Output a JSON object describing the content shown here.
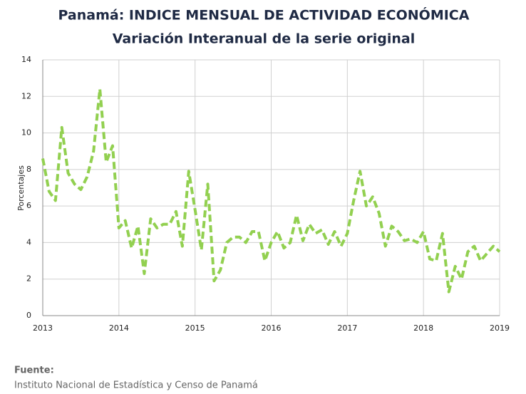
{
  "chart_data": {
    "type": "line",
    "title": "Panamá: INDICE MENSUAL DE ACTIVIDAD ECONÓMICA",
    "subtitle": "Variación Interanual de la serie original",
    "y_label": "Porcentajes",
    "x": [
      2013,
      2013.083,
      2013.167,
      2013.25,
      2013.333,
      2013.417,
      2013.5,
      2013.583,
      2013.667,
      2013.75,
      2013.833,
      2013.917,
      2014,
      2014.083,
      2014.167,
      2014.25,
      2014.333,
      2014.417,
      2014.5,
      2014.583,
      2014.667,
      2014.75,
      2014.833,
      2014.917,
      2015,
      2015.083,
      2015.167,
      2015.25,
      2015.333,
      2015.417,
      2015.5,
      2015.583,
      2015.667,
      2015.75,
      2015.833,
      2015.917,
      2016,
      2016.083,
      2016.167,
      2016.25,
      2016.333,
      2016.417,
      2016.5,
      2016.583,
      2016.667,
      2016.75,
      2016.833,
      2016.917,
      2017,
      2017.083,
      2017.167,
      2017.25,
      2017.333,
      2017.417,
      2017.5,
      2017.583,
      2017.667,
      2017.75,
      2017.833,
      2017.917,
      2018,
      2018.083,
      2018.167,
      2018.25,
      2018.333,
      2018.417,
      2018.5,
      2018.583,
      2018.667,
      2018.75,
      2018.833,
      2018.917,
      2019
    ],
    "series": [
      {
        "color": "#92d050",
        "values": [
          8.6,
          6.8,
          6.3,
          10.3,
          7.8,
          7.2,
          6.9,
          7.6,
          9.0,
          12.4,
          8.4,
          9.3,
          4.8,
          5.2,
          3.7,
          4.9,
          2.3,
          5.3,
          4.8,
          5.0,
          5.0,
          5.7,
          3.8,
          7.9,
          5.8,
          3.6,
          7.2,
          1.9,
          2.5,
          4.0,
          4.3,
          4.3,
          4.0,
          4.6,
          4.6,
          3.0,
          4.0,
          4.6,
          3.7,
          4.0,
          5.5,
          4.1,
          5.0,
          4.5,
          4.7,
          3.9,
          4.6,
          3.8,
          4.5,
          6.3,
          7.9,
          6.0,
          6.5,
          5.6,
          3.8,
          4.9,
          4.6,
          4.1,
          4.2,
          4.0,
          4.6,
          3.1,
          3.0,
          4.5,
          1.3,
          2.7,
          2.0,
          3.5,
          3.8,
          3.0,
          3.4,
          3.8,
          3.5
        ]
      }
    ],
    "xlim": [
      2013,
      2019
    ],
    "xticks": [
      2013,
      2014,
      2015,
      2016,
      2017,
      2018,
      2019
    ],
    "ylim": [
      0,
      14
    ],
    "yticks": [
      0,
      2,
      4,
      6,
      8,
      10,
      12,
      14
    ],
    "grid": true,
    "source_label": "Fuente:",
    "source": "Instituto Nacional de Estadística y Censo de Panamá"
  }
}
